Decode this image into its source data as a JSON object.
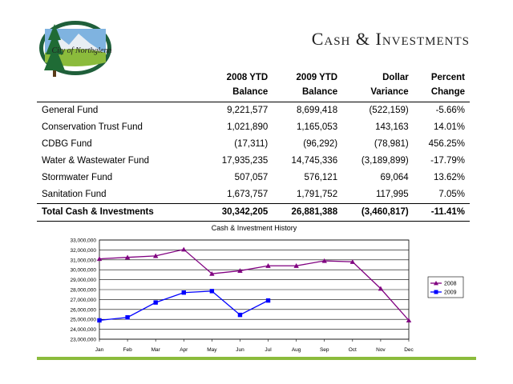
{
  "slide": {
    "title": "Cash & Investments",
    "logo_text": "City of Northglenn",
    "accent_color": "#8bbb3c"
  },
  "table": {
    "headers": [
      {
        "line1": "",
        "line2": ""
      },
      {
        "line1": "2008 YTD",
        "line2": "Balance"
      },
      {
        "line1": "2009 YTD",
        "line2": "Balance"
      },
      {
        "line1": "Dollar",
        "line2": "Variance"
      },
      {
        "line1": "Percent",
        "line2": "Change"
      }
    ],
    "rows": [
      [
        "General Fund",
        "9,221,577",
        "8,699,418",
        "(522,159)",
        "-5.66%"
      ],
      [
        "Conservation Trust Fund",
        "1,021,890",
        "1,165,053",
        "143,163",
        "14.01%"
      ],
      [
        "CDBG Fund",
        "(17,311)",
        "(96,292)",
        "(78,981)",
        "456.25%"
      ],
      [
        "Water & Wastewater Fund",
        "17,935,235",
        "14,745,336",
        "(3,189,899)",
        "-17.79%"
      ],
      [
        "Stormwater Fund",
        "507,057",
        "576,121",
        "69,064",
        "13.62%"
      ],
      [
        "Sanitation Fund",
        "1,673,757",
        "1,791,752",
        "117,995",
        "7.05%"
      ]
    ],
    "total": [
      "Total Cash & Investments",
      "30,342,205",
      "26,881,388",
      "(3,460,817)",
      "-11.41%"
    ]
  },
  "chart_data": {
    "type": "line",
    "title": "Cash & Investment History",
    "categories": [
      "Jan",
      "Feb",
      "Mar",
      "Apr",
      "May",
      "Jun",
      "Jul",
      "Aug",
      "Sep",
      "Oct",
      "Nov",
      "Dec"
    ],
    "ylim": [
      23000000,
      33000000
    ],
    "ytick_step": 1000000,
    "yticks": [
      "23,000,000",
      "24,000,000",
      "25,000,000",
      "26,000,000",
      "27,000,000",
      "28,000,000",
      "29,000,000",
      "30,000,000",
      "31,000,000",
      "32,000,000",
      "33,000,000"
    ],
    "grid": true,
    "legend": "right",
    "series": [
      {
        "name": "2008",
        "color": "#800080",
        "marker": "triangle",
        "values": [
          31100000,
          31250000,
          31400000,
          32050000,
          29600000,
          29900000,
          30400000,
          30400000,
          30900000,
          30800000,
          28100000,
          24900000
        ]
      },
      {
        "name": "2009",
        "color": "#0000ff",
        "marker": "square",
        "values": [
          24900000,
          25200000,
          26700000,
          27700000,
          27850000,
          25450000,
          26900000,
          null,
          null,
          null,
          null,
          null
        ]
      }
    ]
  }
}
